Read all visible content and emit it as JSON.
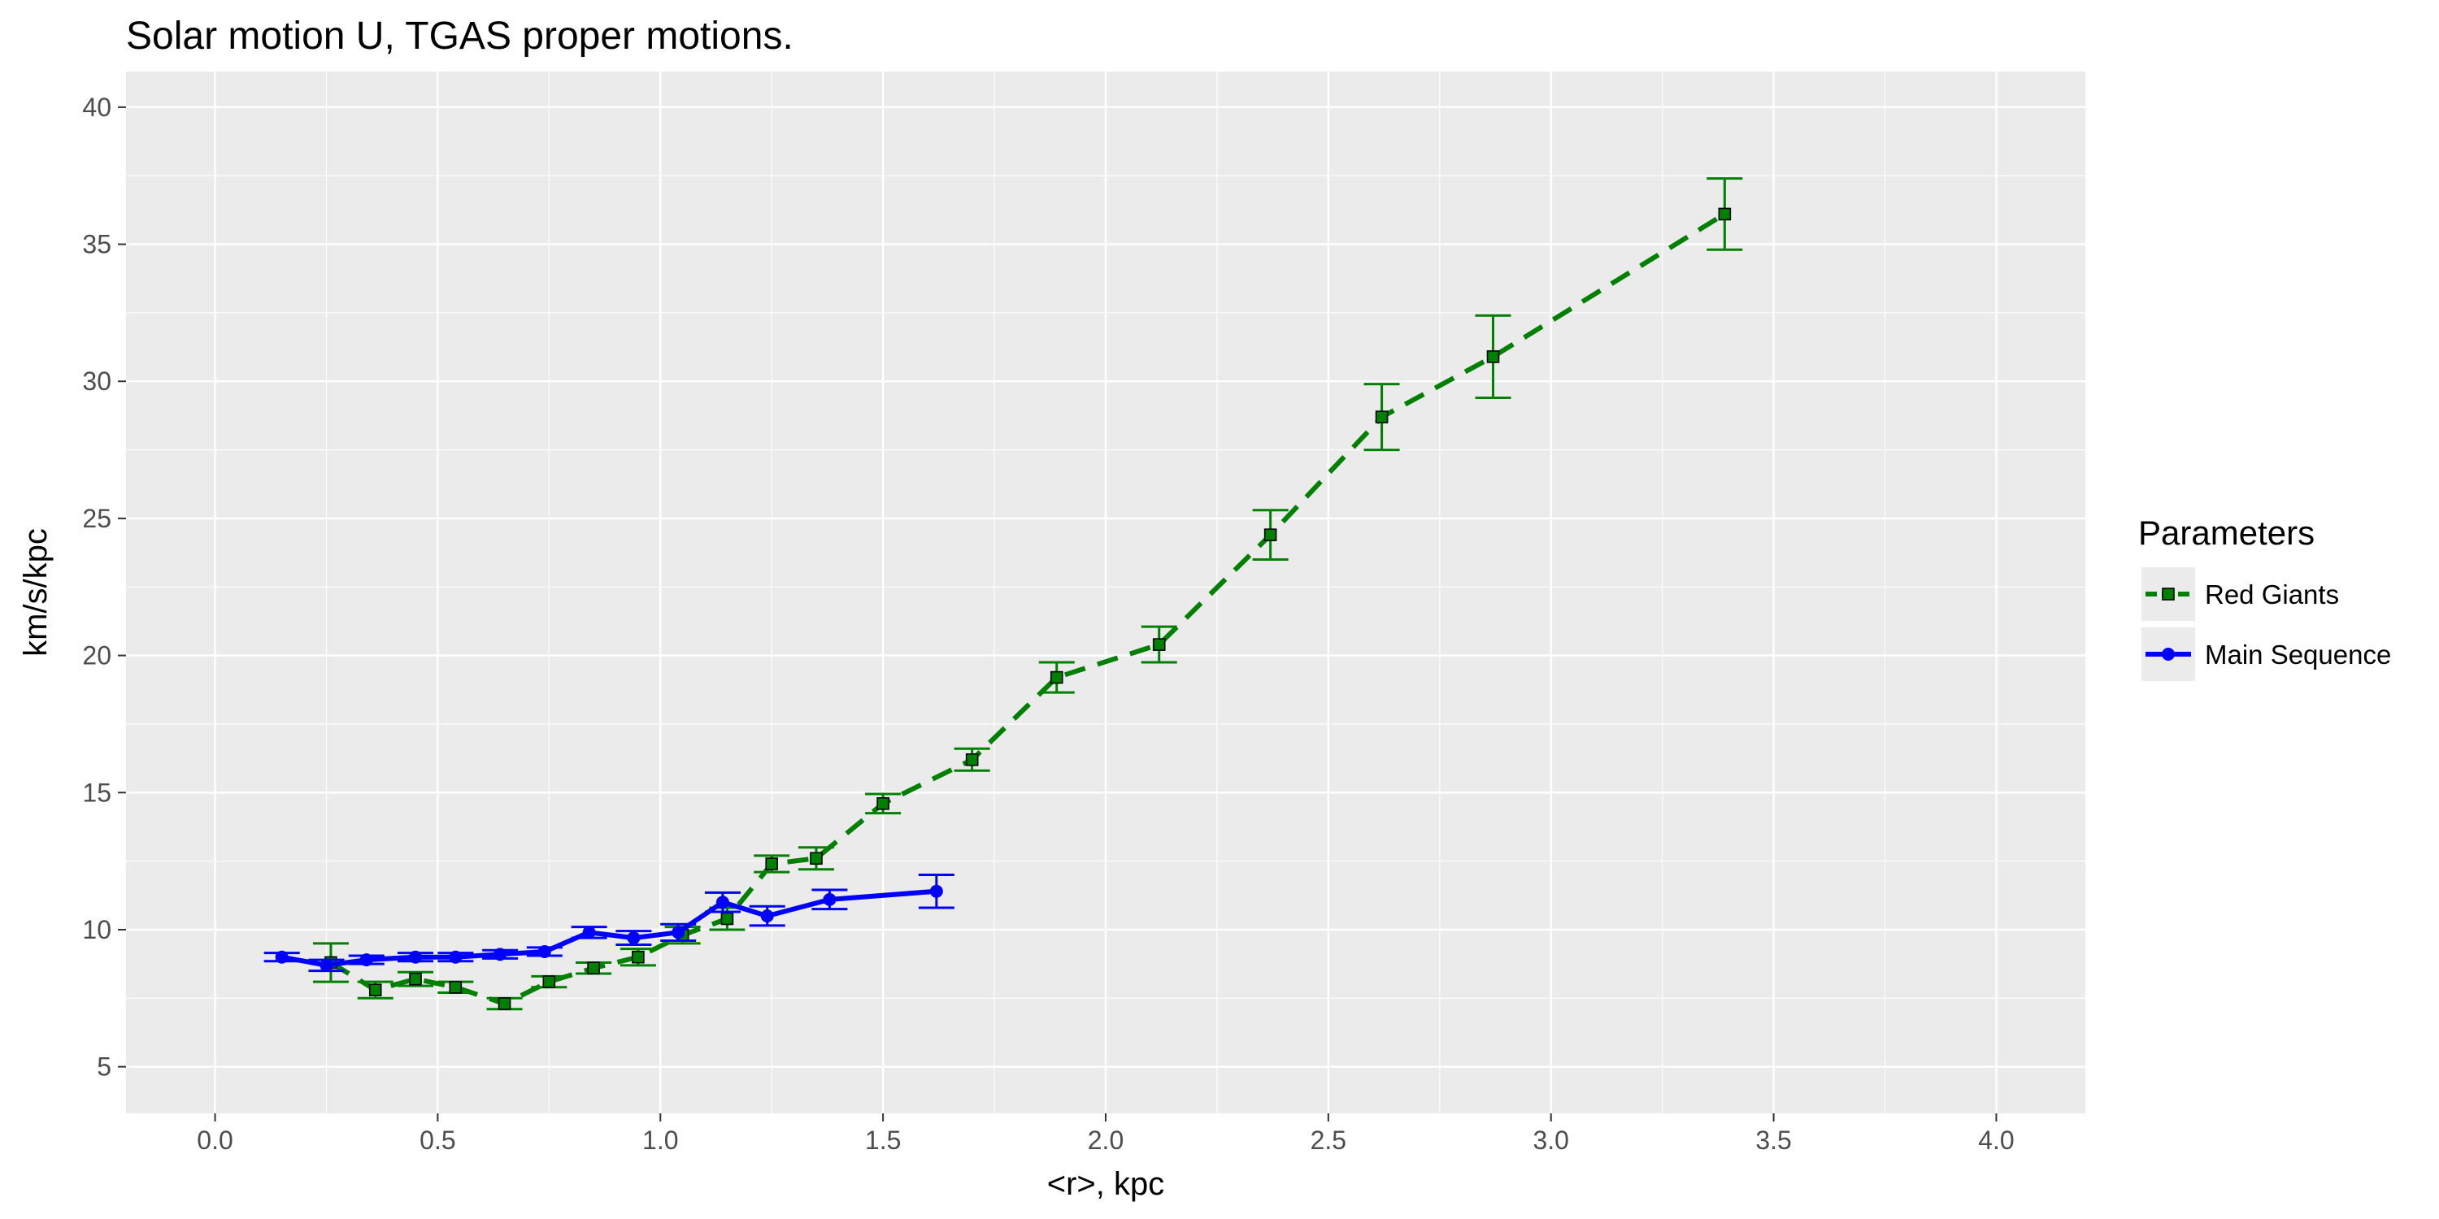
{
  "chart_data": {
    "type": "line",
    "title": "Solar motion U,  TGAS  proper motions.",
    "xlabel": "<r>, kpc",
    "ylabel": "km/s/kpc",
    "xlim": [
      -0.2,
      4.2
    ],
    "ylim": [
      3.3,
      41.3
    ],
    "x_ticks": [
      "0.0",
      "0.5",
      "1.0",
      "1.5",
      "2.0",
      "2.5",
      "3.0",
      "3.5",
      "4.0"
    ],
    "y_ticks": [
      "5",
      "10",
      "15",
      "20",
      "25",
      "30",
      "35",
      "40"
    ],
    "grid": true,
    "legend": {
      "title": "Parameters",
      "position": "right",
      "entries": [
        "Red Giants",
        "Main Sequence"
      ]
    },
    "series": [
      {
        "name": "Red Giants",
        "color": "#008000",
        "line_style": "dashed",
        "marker": "square",
        "x": [
          0.26,
          0.36,
          0.45,
          0.54,
          0.65,
          0.75,
          0.85,
          0.95,
          1.05,
          1.15,
          1.25,
          1.35,
          1.5,
          1.7,
          1.89,
          2.12,
          2.37,
          2.62,
          2.87,
          3.39
        ],
        "y": [
          8.8,
          7.8,
          8.2,
          7.9,
          7.3,
          8.1,
          8.6,
          9.0,
          9.8,
          10.4,
          12.4,
          12.6,
          14.6,
          16.2,
          19.2,
          20.4,
          24.4,
          28.7,
          30.9,
          36.1
        ],
        "err": [
          0.7,
          0.3,
          0.25,
          0.2,
          0.2,
          0.2,
          0.2,
          0.3,
          0.3,
          0.4,
          0.3,
          0.4,
          0.35,
          0.4,
          0.55,
          0.65,
          0.9,
          1.2,
          1.5,
          1.3
        ]
      },
      {
        "name": "Main Sequence",
        "color": "#0000ff",
        "line_style": "solid",
        "marker": "circle",
        "x": [
          0.15,
          0.25,
          0.34,
          0.45,
          0.54,
          0.64,
          0.74,
          0.84,
          0.94,
          1.04,
          1.14,
          1.24,
          1.38,
          1.62
        ],
        "y": [
          9.0,
          8.7,
          8.9,
          9.0,
          9.0,
          9.1,
          9.2,
          9.9,
          9.7,
          9.9,
          11.0,
          10.5,
          11.1,
          11.4
        ],
        "err": [
          0.15,
          0.2,
          0.15,
          0.15,
          0.15,
          0.15,
          0.15,
          0.2,
          0.25,
          0.3,
          0.35,
          0.35,
          0.35,
          0.6
        ]
      }
    ]
  }
}
